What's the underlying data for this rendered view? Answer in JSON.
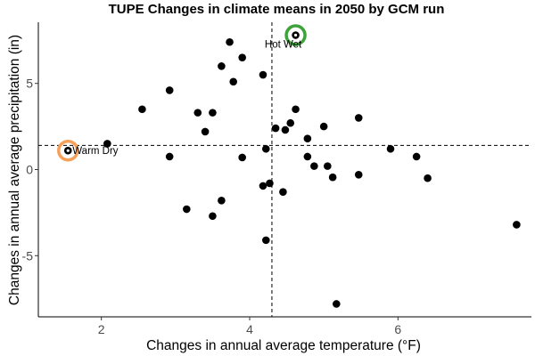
{
  "chart_data": {
    "type": "scatter",
    "title": "TUPE Changes in climate means in 2050 by GCM run",
    "xlabel": "Changes in annual average temperature (°F)",
    "ylabel": "Changes in annual average precipitation (in)",
    "xlim": [
      1.15,
      7.8
    ],
    "ylim": [
      -8.55,
      8.55
    ],
    "xticks": [
      {
        "value": 2,
        "label": "2"
      },
      {
        "value": 4,
        "label": "4"
      },
      {
        "value": 6,
        "label": "6"
      }
    ],
    "yticks": [
      {
        "value": -5,
        "label": "-5"
      },
      {
        "value": 0,
        "label": "0"
      },
      {
        "value": 5,
        "label": "5"
      }
    ],
    "reference_lines": {
      "x": 4.3,
      "y": 1.4
    },
    "grid": false,
    "point_color": "#000000",
    "points": [
      {
        "x": 1.55,
        "y": 1.1
      },
      {
        "x": 2.08,
        "y": 1.5
      },
      {
        "x": 2.55,
        "y": 3.5
      },
      {
        "x": 2.92,
        "y": 4.6
      },
      {
        "x": 2.92,
        "y": 0.75
      },
      {
        "x": 3.15,
        "y": -2.3
      },
      {
        "x": 3.3,
        "y": 3.3
      },
      {
        "x": 3.4,
        "y": 2.2
      },
      {
        "x": 3.5,
        "y": 3.3
      },
      {
        "x": 3.5,
        "y": -2.7
      },
      {
        "x": 3.62,
        "y": 6.0
      },
      {
        "x": 3.62,
        "y": -1.8
      },
      {
        "x": 3.73,
        "y": 7.4
      },
      {
        "x": 3.78,
        "y": 5.1
      },
      {
        "x": 3.9,
        "y": 6.5
      },
      {
        "x": 3.9,
        "y": 0.7
      },
      {
        "x": 4.18,
        "y": 5.5
      },
      {
        "x": 4.18,
        "y": -0.95
      },
      {
        "x": 4.22,
        "y": 1.2
      },
      {
        "x": 4.22,
        "y": -4.1
      },
      {
        "x": 4.27,
        "y": -0.8
      },
      {
        "x": 4.35,
        "y": 2.4
      },
      {
        "x": 4.45,
        "y": -1.3
      },
      {
        "x": 4.48,
        "y": 2.3
      },
      {
        "x": 4.55,
        "y": 2.7
      },
      {
        "x": 4.62,
        "y": 7.8
      },
      {
        "x": 4.62,
        "y": 3.5
      },
      {
        "x": 4.78,
        "y": 1.8
      },
      {
        "x": 4.78,
        "y": 0.75
      },
      {
        "x": 4.87,
        "y": 0.2
      },
      {
        "x": 5.0,
        "y": 2.5
      },
      {
        "x": 5.05,
        "y": 0.2
      },
      {
        "x": 5.12,
        "y": -0.45
      },
      {
        "x": 5.17,
        "y": -7.8
      },
      {
        "x": 5.47,
        "y": 3.0
      },
      {
        "x": 5.47,
        "y": -0.3
      },
      {
        "x": 5.9,
        "y": 1.2
      },
      {
        "x": 6.25,
        "y": 0.75
      },
      {
        "x": 6.4,
        "y": -0.5
      },
      {
        "x": 7.6,
        "y": -3.2
      }
    ],
    "annotations": [
      {
        "label": "Warm Dry",
        "x": 1.55,
        "y": 1.1,
        "ring_color": "#f6a05a"
      },
      {
        "label": "Hot Wet",
        "x": 4.62,
        "y": 7.8,
        "ring_color": "#3da33a"
      }
    ]
  }
}
